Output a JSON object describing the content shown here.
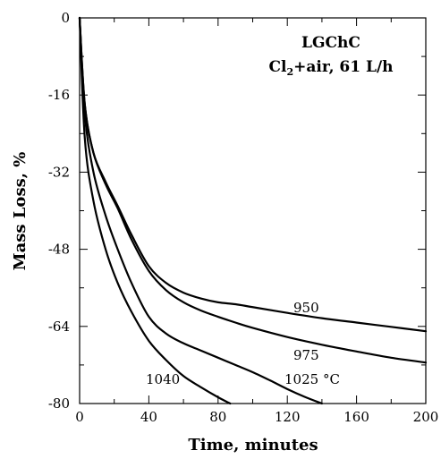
{
  "chart_data": {
    "type": "line",
    "title": "",
    "xlabel": "Time, minutes",
    "ylabel": "Mass Loss, %",
    "xlim": [
      0,
      200
    ],
    "ylim": [
      -80,
      0
    ],
    "x_ticks": [
      0,
      40,
      80,
      120,
      160,
      200
    ],
    "y_ticks": [
      0,
      -16,
      -32,
      -48,
      -64,
      -80
    ],
    "grid": false,
    "annotations": {
      "material": "LGChC",
      "gas_prefix": "Cl",
      "gas_subscript": "2",
      "gas_suffix": "+air, 61 L/h"
    },
    "series": [
      {
        "name": "950",
        "x": [
          0,
          3,
          8,
          15,
          22,
          30,
          40,
          50,
          60,
          70,
          80,
          90,
          100,
          120,
          140,
          160,
          180,
          200
        ],
        "y": [
          0,
          -18,
          -28,
          -34,
          -39,
          -45,
          -51.5,
          -55,
          -57,
          -58.2,
          -59,
          -59.4,
          -60,
          -61.2,
          -62.3,
          -63.2,
          -64.1,
          -65
        ]
      },
      {
        "name": "975",
        "x": [
          0,
          3,
          8,
          15,
          22,
          30,
          40,
          50,
          60,
          70,
          80,
          90,
          100,
          120,
          140,
          160,
          180,
          200
        ],
        "y": [
          0,
          -18,
          -28,
          -34.5,
          -39.5,
          -46,
          -52.5,
          -56.5,
          -59,
          -60.7,
          -62,
          -63.2,
          -64.3,
          -66.2,
          -67.8,
          -69.2,
          -70.5,
          -71.5
        ]
      },
      {
        "name": "1025 °C",
        "x": [
          0,
          3,
          8,
          15,
          22,
          30,
          40,
          50,
          60,
          70,
          80,
          90,
          100,
          110,
          120,
          130,
          140
        ],
        "y": [
          0,
          -20,
          -32,
          -41,
          -48,
          -55,
          -62,
          -65.5,
          -67.5,
          -69,
          -70.5,
          -72,
          -73.5,
          -75.2,
          -77,
          -78.6,
          -80
        ]
      },
      {
        "name": "1040",
        "x": [
          0,
          3,
          8,
          15,
          22,
          30,
          40,
          50,
          60,
          70,
          80,
          87
        ],
        "y": [
          0,
          -25,
          -38,
          -48,
          -55,
          -61,
          -67,
          -71,
          -74.3,
          -76.6,
          -78.7,
          -80
        ]
      }
    ],
    "curve_labels": [
      "950",
      "975",
      "1025 °C",
      "1040"
    ]
  }
}
